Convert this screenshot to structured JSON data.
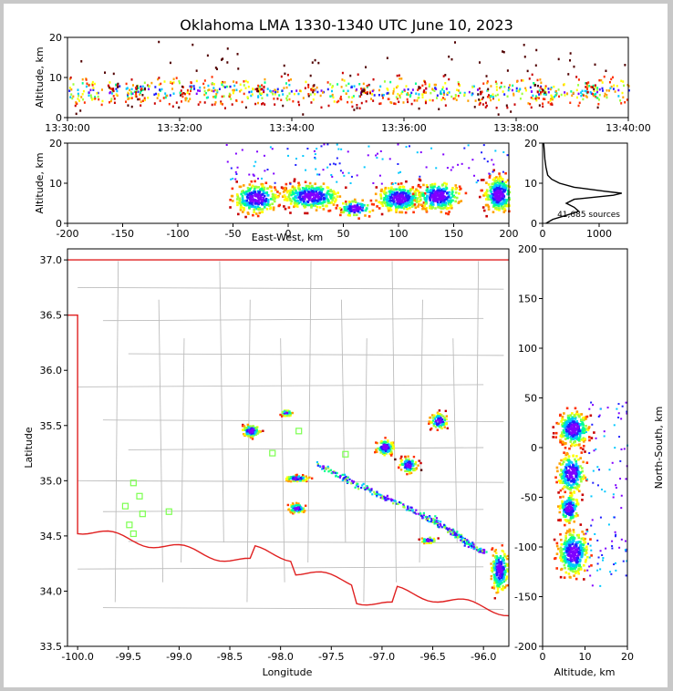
{
  "title": "Oklahoma LMA 1330-1340 UTC June 10, 2023",
  "colors": {
    "state_border": "#e02020",
    "county_lines": "#bdbdbd",
    "stations": "#7cff50",
    "source_scale": [
      "#7f00ff",
      "#2020ff",
      "#00c8ff",
      "#00ff90",
      "#9cff3c",
      "#ffff00",
      "#ffa000",
      "#ff3000",
      "#c80000",
      "#500000"
    ]
  },
  "chart_data": [
    {
      "id": "time_height",
      "type": "scatter",
      "xlabel": "",
      "ylabel": "Altitude, km",
      "x_ticks": [
        "13:30:00",
        "13:32:00",
        "13:34:00",
        "13:36:00",
        "13:38:00",
        "13:40:00"
      ],
      "xlim": [
        0,
        10
      ],
      "ylim": [
        0,
        20
      ],
      "y_ticks": [
        0,
        10,
        20
      ],
      "source_columns": [
        {
          "t": 0.8,
          "alt_min": 2,
          "alt_max": 16,
          "peak": 7.5
        },
        {
          "t": 1.3,
          "alt_min": 3,
          "alt_max": 12,
          "peak": 7
        },
        {
          "t": 2.1,
          "alt_min": 2,
          "alt_max": 13,
          "peak": 7
        },
        {
          "t": 3.4,
          "alt_min": 2,
          "alt_max": 15,
          "peak": 8
        },
        {
          "t": 4.3,
          "alt_min": 2,
          "alt_max": 14,
          "peak": 7
        },
        {
          "t": 5.3,
          "alt_min": 1,
          "alt_max": 16,
          "peak": 7
        },
        {
          "t": 6.3,
          "alt_min": 2,
          "alt_max": 14,
          "peak": 8
        },
        {
          "t": 7.4,
          "alt_min": 1,
          "alt_max": 14,
          "peak": 6
        },
        {
          "t": 8.4,
          "alt_min": 2,
          "alt_max": 16,
          "peak": 7
        },
        {
          "t": 9.3,
          "alt_min": 2,
          "alt_max": 15,
          "peak": 8
        }
      ]
    },
    {
      "id": "east_west_altitude",
      "type": "heatmap",
      "xlabel": "East-West, km",
      "ylabel": "Altitude, km",
      "xlim": [
        -200,
        200
      ],
      "x_ticks": [
        -200,
        -150,
        -100,
        -50,
        0,
        50,
        100,
        150,
        200
      ],
      "ylim": [
        0,
        20
      ],
      "y_ticks": [
        0,
        10,
        20
      ],
      "clusters": [
        {
          "x": -30,
          "y": 6.5,
          "sx": 14,
          "sy": 2.5,
          "n": 260
        },
        {
          "x": 20,
          "y": 7,
          "sx": 18,
          "sy": 2.2,
          "n": 320
        },
        {
          "x": 60,
          "y": 4,
          "sx": 10,
          "sy": 1.5,
          "n": 90
        },
        {
          "x": 100,
          "y": 6.5,
          "sx": 14,
          "sy": 2.2,
          "n": 300
        },
        {
          "x": 135,
          "y": 7,
          "sx": 14,
          "sy": 2.5,
          "n": 260
        },
        {
          "x": 190,
          "y": 7.5,
          "sx": 9,
          "sy": 3,
          "n": 300
        }
      ]
    },
    {
      "id": "altitude_histogram",
      "type": "line",
      "xlabel": "",
      "ylabel": "",
      "xlim": [
        0,
        1500
      ],
      "x_ticks": [
        0,
        1000
      ],
      "ylim": [
        0,
        20
      ],
      "y_ticks": [
        0,
        10,
        20
      ],
      "annotation": "41,685 sources",
      "profile": [
        {
          "alt": 0,
          "count": 60
        },
        {
          "alt": 1,
          "count": 180
        },
        {
          "alt": 2,
          "count": 420
        },
        {
          "alt": 3,
          "count": 640
        },
        {
          "alt": 4,
          "count": 560
        },
        {
          "alt": 5,
          "count": 420
        },
        {
          "alt": 6,
          "count": 560
        },
        {
          "alt": 7,
          "count": 1250
        },
        {
          "alt": 7.5,
          "count": 1400
        },
        {
          "alt": 8,
          "count": 1100
        },
        {
          "alt": 9,
          "count": 560
        },
        {
          "alt": 10,
          "count": 300
        },
        {
          "alt": 11,
          "count": 160
        },
        {
          "alt": 12,
          "count": 90
        },
        {
          "alt": 14,
          "count": 60
        },
        {
          "alt": 16,
          "count": 40
        },
        {
          "alt": 18,
          "count": 30
        },
        {
          "alt": 20,
          "count": 20
        }
      ]
    },
    {
      "id": "plan_view_map",
      "type": "scatter",
      "xlabel": "Longitude",
      "ylabel": "Latitude",
      "xlim": [
        -100.1,
        -95.75
      ],
      "x_ticks": [
        -100.0,
        -99.5,
        -99.0,
        -98.5,
        -98.0,
        -97.5,
        -97.0,
        -96.5,
        -96.0
      ],
      "x_tick_labels": [
        "-100.0",
        "-99.5",
        "-99.0",
        "-98.5",
        "-98.0",
        "-97.5",
        "-97.0",
        "-96.5",
        "-96.0"
      ],
      "ylim": [
        33.5,
        37.1
      ],
      "y_ticks": [
        33.5,
        34.0,
        34.5,
        35.0,
        35.5,
        36.0,
        36.5,
        37.0
      ],
      "y_tick_labels": [
        "33.5",
        "34.0",
        "34.5",
        "35.0",
        "35.5",
        "36.0",
        "36.5",
        "37.0"
      ],
      "stations": [
        {
          "lon": -99.45,
          "lat": 34.98
        },
        {
          "lon": -99.39,
          "lat": 34.86
        },
        {
          "lon": -99.53,
          "lat": 34.77
        },
        {
          "lon": -99.36,
          "lat": 34.7
        },
        {
          "lon": -99.1,
          "lat": 34.72
        },
        {
          "lon": -99.49,
          "lat": 34.6
        },
        {
          "lon": -99.45,
          "lat": 34.52
        },
        {
          "lon": -98.08,
          "lat": 35.25
        },
        {
          "lon": -97.82,
          "lat": 35.45
        },
        {
          "lon": -97.36,
          "lat": 35.24
        }
      ],
      "clusters": [
        {
          "lon": -98.3,
          "lat": 35.46,
          "slon": 0.06,
          "slat": 0.04,
          "n": 140
        },
        {
          "lon": -97.95,
          "lat": 35.62,
          "slon": 0.04,
          "slat": 0.02,
          "n": 50
        },
        {
          "lon": -97.85,
          "lat": 35.03,
          "slon": 0.08,
          "slat": 0.02,
          "n": 90
        },
        {
          "lon": -97.85,
          "lat": 34.76,
          "slon": 0.06,
          "slat": 0.03,
          "n": 80
        },
        {
          "lon": -96.98,
          "lat": 35.31,
          "slon": 0.06,
          "slat": 0.05,
          "n": 110
        },
        {
          "lon": -96.75,
          "lat": 35.15,
          "slon": 0.06,
          "slat": 0.05,
          "n": 100
        },
        {
          "lon": -96.45,
          "lat": 35.55,
          "slon": 0.06,
          "slat": 0.05,
          "n": 90
        },
        {
          "lon": -96.55,
          "lat": 34.47,
          "slon": 0.05,
          "slat": 0.02,
          "n": 50
        },
        {
          "lon": -95.85,
          "lat": 34.2,
          "slon": 0.06,
          "slat": 0.14,
          "n": 220
        }
      ],
      "flash_line": [
        {
          "lon": -97.65,
          "lat": 35.15
        },
        {
          "lon": -96.5,
          "lat": 34.65
        },
        {
          "lon": -96.0,
          "lat": 34.35
        }
      ]
    },
    {
      "id": "altitude_north_south",
      "type": "heatmap",
      "xlabel": "Altitude, km",
      "ylabel": "North-South, km",
      "xlim": [
        0,
        20
      ],
      "x_ticks": [
        0,
        10,
        20
      ],
      "ylim": [
        -200,
        200
      ],
      "y_ticks": [
        -200,
        -150,
        -100,
        -50,
        0,
        50,
        100,
        150,
        200
      ],
      "clusters": [
        {
          "x": 7,
          "y": 20,
          "sx": 2.5,
          "sy": 12,
          "n": 260
        },
        {
          "x": 6.5,
          "y": -25,
          "sx": 2.2,
          "sy": 14,
          "n": 220
        },
        {
          "x": 6,
          "y": -60,
          "sx": 1.6,
          "sy": 10,
          "n": 140
        },
        {
          "x": 7,
          "y": -105,
          "sx": 2.5,
          "sy": 16,
          "n": 300
        }
      ]
    }
  ]
}
